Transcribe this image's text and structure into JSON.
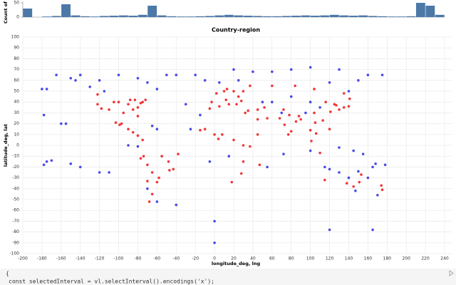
{
  "chart_data": [
    {
      "type": "histogram",
      "y_label": "Count of",
      "bins": [
        -200,
        -190,
        -180,
        -170,
        -160,
        -150,
        -140,
        -130,
        -120,
        -110,
        -100,
        -90,
        -80,
        -70,
        -60,
        -50,
        -40,
        -30,
        -20,
        -10,
        0,
        10,
        20,
        30,
        40,
        50,
        60,
        70,
        80,
        90,
        100,
        110,
        120,
        130,
        140,
        150,
        160,
        170,
        180,
        190,
        200,
        210,
        220,
        230,
        240
      ],
      "values": [
        30,
        0,
        2,
        4,
        45,
        6,
        3,
        2,
        4,
        5,
        6,
        5,
        8,
        40,
        6,
        3,
        2,
        2,
        3,
        4,
        6,
        8,
        6,
        5,
        4,
        3,
        3,
        4,
        5,
        6,
        5,
        6,
        8,
        6,
        5,
        6,
        4,
        3,
        2,
        2,
        3,
        50,
        40,
        8
      ],
      "color": "#4c78a8",
      "xlim": [
        -200,
        240
      ],
      "ylim": [
        0,
        55
      ],
      "yticks": [
        0,
        50
      ]
    },
    {
      "type": "scatter",
      "title": "Country-region",
      "x_label": "longitude_deg, lng",
      "y_label": "latitude_deg, lat",
      "xlim": [
        -200,
        240
      ],
      "ylim": [
        -100,
        100
      ],
      "xticks": [
        -200,
        -180,
        -160,
        -140,
        -120,
        -100,
        -80,
        -60,
        -40,
        -20,
        0,
        20,
        40,
        60,
        80,
        100,
        120,
        140,
        160,
        180,
        200,
        220,
        240
      ],
      "yticks": [
        -100,
        -90,
        -80,
        -70,
        -60,
        -50,
        -40,
        -30,
        -20,
        -10,
        0,
        10,
        20,
        30,
        40,
        50,
        60,
        70,
        80,
        90,
        100
      ],
      "grid": true,
      "series": [
        {
          "color": "#2a2ae8",
          "x": [
            -150,
            -165,
            -140,
            -120,
            -100,
            -80,
            -70,
            -60,
            -50,
            -40,
            -20,
            -160,
            -155,
            -175,
            -170,
            -150,
            -140,
            -178,
            -120,
            -110,
            -80,
            -90,
            -10,
            20,
            40,
            60,
            80,
            100,
            130,
            160,
            175,
            150,
            -5,
            15,
            55,
            72,
            100,
            130,
            145,
            155,
            165,
            168,
            178,
            130,
            120,
            140,
            115,
            150,
            147,
            160,
            170,
            -40,
            -60,
            -70,
            0,
            120,
            165,
            0,
            -178,
            -175,
            -180,
            -145,
            50,
            60,
            100,
            80,
            -30,
            -25,
            -15,
            -60,
            -65,
            5,
            25,
            120,
            140,
            -130,
            -115,
            70,
            110,
            95
          ],
          "y": [
            62,
            65,
            65,
            60,
            65,
            62,
            58,
            52,
            65,
            65,
            65,
            20,
            20,
            -15,
            -14,
            -17,
            -20,
            -18,
            -25,
            -25,
            -1,
            0,
            60,
            70,
            68,
            68,
            70,
            72,
            70,
            65,
            65,
            60,
            -15,
            -10,
            -20,
            -8,
            -5,
            -2,
            -5,
            -8,
            -20,
            -17,
            -18,
            -25,
            -22,
            -30,
            -20,
            -24,
            -42,
            -30,
            -46,
            -55,
            -52,
            -40,
            -70,
            -78,
            -78,
            -90,
            28,
            52,
            52,
            60,
            40,
            40,
            40,
            45,
            38,
            15,
            28,
            15,
            18,
            58,
            60,
            58,
            50,
            54,
            50,
            30,
            35,
            30
          ]
        },
        {
          "color": "#ee1515",
          "x": [
            -75,
            -80,
            -85,
            -90,
            -95,
            -100,
            -105,
            -110,
            -118,
            -122,
            -122,
            -88,
            -83,
            -77,
            -72,
            -80,
            -97,
            -99,
            -103,
            -90,
            -85,
            -80,
            -75,
            -74,
            -77,
            -70,
            -65,
            -60,
            -58,
            -47,
            -43,
            -38,
            -48,
            -55,
            -65,
            -70,
            -68,
            -3,
            2,
            10,
            13,
            20,
            25,
            30,
            37,
            12,
            15,
            23,
            28,
            35,
            45,
            52,
            55,
            45,
            32,
            5,
            -5,
            -10,
            0,
            8,
            -15,
            4,
            20,
            30,
            37,
            30,
            28,
            18,
            47,
            45,
            68,
            72,
            78,
            73,
            80,
            77,
            85,
            88,
            90,
            100,
            105,
            106,
            101,
            110,
            120,
            121,
            116,
            113,
            104,
            125,
            127,
            135,
            140,
            141,
            130,
            145,
            151,
            153,
            115,
            138,
            175,
            174,
            60,
            84,
            104,
            135
          ],
          "y": [
            40,
            35,
            33,
            38,
            30,
            40,
            40,
            33,
            34,
            38,
            47,
            42,
            42,
            39,
            42,
            27,
            20,
            19,
            21,
            15,
            12,
            9,
            5,
            -10,
            -12,
            -18,
            -25,
            -34,
            -30,
            -23,
            -22,
            -8,
            -15,
            -10,
            -45,
            -33,
            -52,
            40,
            48,
            50,
            52,
            50,
            45,
            50,
            55,
            42,
            38,
            38,
            41,
            32,
            33,
            35,
            25,
            24,
            30,
            36,
            34,
            15,
            10,
            10,
            14,
            6,
            5,
            0,
            -1,
            -15,
            -26,
            -34,
            -18,
            10,
            25,
            33,
            28,
            19,
            13,
            10,
            22,
            27,
            24,
            14,
            21,
            11,
            4,
            -7,
            15,
            31,
            40,
            23,
            30,
            38,
            37,
            35,
            36,
            43,
            33,
            -38,
            -34,
            -27,
            -32,
            -35,
            -41,
            -37,
            55,
            55,
            52,
            48
          ]
        }
      ]
    }
  ],
  "code_lines": [
    "{",
    "const selectedInterval = vl.selectInterval().encodings('x');"
  ]
}
